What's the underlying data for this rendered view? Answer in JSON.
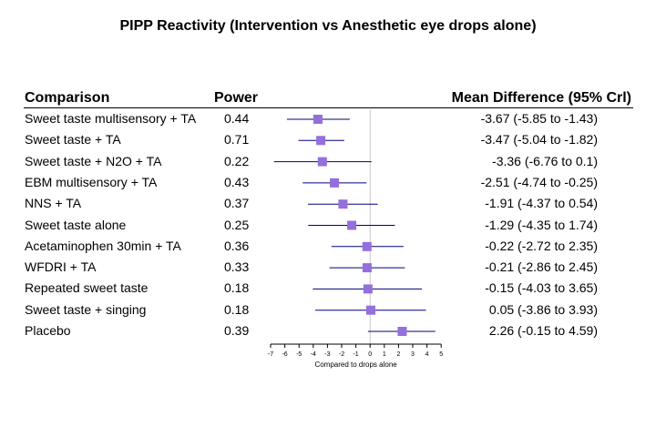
{
  "chart_data": {
    "type": "forest",
    "title": "PIPP Reactivity (Intervention vs Anesthetic eye drops alone)",
    "columns": {
      "comparison": "Comparison",
      "power": "Power",
      "mean_difference": "Mean Difference (95% Crl)"
    },
    "xlabel": "Compared to drops alone",
    "xlim": [
      -7,
      5
    ],
    "xticks": [
      -7,
      -6,
      -5,
      -4,
      -3,
      -2,
      -1,
      0,
      1,
      2,
      3,
      4,
      5
    ],
    "reference_line": 0,
    "marker_color": "#9370db",
    "line_color": "#000080",
    "rows": [
      {
        "label": "Sweet taste multisensory + TA",
        "power": "0.44",
        "md_text": "-3.67 (-5.85 to -1.43)",
        "md": -3.67,
        "lo": -5.85,
        "hi": -1.43
      },
      {
        "label": "Sweet taste + TA",
        "power": "0.71",
        "md_text": "-3.47 (-5.04 to -1.82)",
        "md": -3.47,
        "lo": -5.04,
        "hi": -1.82
      },
      {
        "label": "Sweet taste + N2O + TA",
        "power": "0.22",
        "md_text": "-3.36 (-6.76 to 0.1)",
        "md": -3.36,
        "lo": -6.76,
        "hi": 0.1
      },
      {
        "label": "EBM multisensory + TA",
        "power": "0.43",
        "md_text": "-2.51 (-4.74 to -0.25)",
        "md": -2.51,
        "lo": -4.74,
        "hi": -0.25
      },
      {
        "label": "NNS + TA",
        "power": "0.37",
        "md_text": "-1.91 (-4.37 to 0.54)",
        "md": -1.91,
        "lo": -4.37,
        "hi": 0.54
      },
      {
        "label": "Sweet taste alone",
        "power": "0.25",
        "md_text": "-1.29 (-4.35 to 1.74)",
        "md": -1.29,
        "lo": -4.35,
        "hi": 1.74
      },
      {
        "label": "Acetaminophen 30min + TA",
        "power": "0.36",
        "md_text": "-0.22 (-2.72 to 2.35)",
        "md": -0.22,
        "lo": -2.72,
        "hi": 2.35
      },
      {
        "label": "WFDRI + TA",
        "power": "0.33",
        "md_text": "-0.21 (-2.86 to 2.45)",
        "md": -0.21,
        "lo": -2.86,
        "hi": 2.45
      },
      {
        "label": "Repeated sweet taste",
        "power": "0.18",
        "md_text": "-0.15 (-4.03 to 3.65)",
        "md": -0.15,
        "lo": -4.03,
        "hi": 3.65
      },
      {
        "label": "Sweet taste + singing",
        "power": "0.18",
        "md_text": "0.05 (-3.86 to 3.93)",
        "md": 0.05,
        "lo": -3.86,
        "hi": 3.93
      },
      {
        "label": "Placebo",
        "power": "0.39",
        "md_text": "2.26 (-0.15 to 4.59)",
        "md": 2.26,
        "lo": -0.15,
        "hi": 4.59
      }
    ]
  }
}
